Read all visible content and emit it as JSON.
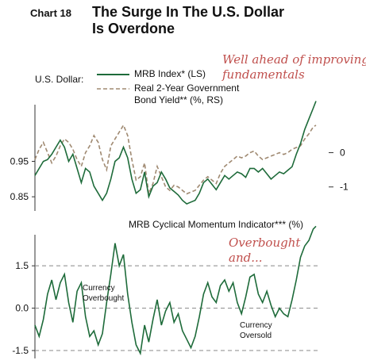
{
  "header": {
    "chart_number": "Chart 18",
    "title_line1": "The Surge In The U.S. Dollar",
    "title_line2": "Is Overdone"
  },
  "top_panel": {
    "annotation_line1": "Well ahead of improving",
    "annotation_line2": "fundamentals",
    "axis_group_label": "U.S. Dollar:",
    "legend_index": "MRB Index* (LS)",
    "legend_yield_line1": "Real 2-Year Government",
    "legend_yield_line2": "Bond Yield** (%, RS)"
  },
  "bottom_panel": {
    "title": "MRB Cyclical Momentum Indicator*** (%)",
    "annotation_line1": "Overbought",
    "annotation_line2": "and...",
    "label_overbought_line1": "Currency",
    "label_overbought_line2": "Overbought",
    "label_oversold_line1": "Currency",
    "label_oversold_line2": "Oversold"
  },
  "colors": {
    "index_line": "#1e6b3a",
    "yield_line": "#a08a72",
    "annotation": "#c0504d",
    "reference_line": "#888888"
  },
  "chart_data": [
    {
      "type": "line",
      "title": "",
      "x_domain": [
        0,
        100
      ],
      "left_axis": {
        "ticks": [
          0.85,
          0.95
        ],
        "tick_labels": [
          "0.85",
          "0.95"
        ],
        "range": [
          0.81,
          1.11
        ]
      },
      "right_axis": {
        "ticks": [
          0,
          -1
        ],
        "tick_labels": [
          "0",
          "-1"
        ],
        "range": [
          -1.7,
          1.4
        ]
      },
      "series": [
        {
          "name": "MRB Index* (LS)",
          "axis": "left",
          "x": [
            0,
            1.5,
            3,
            4.5,
            6,
            7.5,
            9,
            10.5,
            12,
            13.5,
            15,
            16.5,
            18,
            19.5,
            21,
            22.5,
            24,
            25.5,
            27,
            28.5,
            30,
            31.5,
            33,
            34.5,
            36,
            37.5,
            39,
            40.5,
            42,
            43.5,
            45,
            46.5,
            48,
            49.5,
            51,
            52.5,
            54,
            55.5,
            57,
            58.5,
            60,
            61.5,
            63,
            64.5,
            66,
            67.5,
            69,
            70.5,
            72,
            73.5,
            75,
            76.5,
            78,
            79.5,
            81,
            82.5,
            84,
            85.5,
            87,
            88.5,
            90,
            91.5,
            93,
            94.5,
            96,
            97.5,
            99,
            100
          ],
          "values": [
            0.91,
            0.93,
            0.95,
            0.955,
            0.97,
            0.99,
            1.01,
            0.99,
            0.95,
            0.97,
            0.93,
            0.89,
            0.93,
            0.92,
            0.88,
            0.86,
            0.84,
            0.86,
            0.9,
            0.95,
            0.96,
            0.99,
            0.96,
            0.9,
            0.86,
            0.87,
            0.92,
            0.85,
            0.88,
            0.89,
            0.92,
            0.9,
            0.875,
            0.865,
            0.855,
            0.84,
            0.83,
            0.835,
            0.84,
            0.86,
            0.89,
            0.9,
            0.885,
            0.87,
            0.89,
            0.91,
            0.9,
            0.91,
            0.92,
            0.915,
            0.905,
            0.93,
            0.93,
            0.92,
            0.93,
            0.915,
            0.9,
            0.91,
            0.92,
            0.915,
            0.925,
            0.935,
            0.97,
            1.0,
            1.04,
            1.07,
            1.1,
            1.12
          ]
        },
        {
          "name": "Real 2-Year Government Bond Yield** (%, RS)",
          "axis": "right",
          "x": [
            0,
            1.5,
            3,
            4.5,
            6,
            7.5,
            9,
            10.5,
            12,
            13.5,
            15,
            16.5,
            18,
            19.5,
            21,
            22.5,
            24,
            25.5,
            27,
            28.5,
            30,
            31.5,
            33,
            34.5,
            36,
            37.5,
            39,
            40.5,
            42,
            43.5,
            45,
            46.5,
            48,
            49.5,
            51,
            52.5,
            54,
            55.5,
            57,
            58.5,
            60,
            61.5,
            63,
            64.5,
            66,
            67.5,
            69,
            70.5,
            72,
            73.5,
            75,
            76.5,
            78,
            79.5,
            81,
            82.5,
            84,
            85.5,
            87,
            88.5,
            90,
            91.5,
            93,
            94.5,
            96,
            97.5,
            99,
            100
          ],
          "values": [
            -0.2,
            0.1,
            0.3,
            0.0,
            -0.3,
            -0.1,
            0.2,
            0.4,
            0.3,
            0.1,
            -0.2,
            -0.4,
            0.0,
            0.2,
            0.5,
            0.3,
            -0.2,
            -0.5,
            0.2,
            0.4,
            0.6,
            0.8,
            0.5,
            -0.2,
            -0.8,
            -0.7,
            -0.3,
            -1.2,
            -0.9,
            -0.4,
            -0.7,
            -1.0,
            -1.1,
            -0.95,
            -1.0,
            -1.1,
            -1.2,
            -1.15,
            -1.1,
            -0.95,
            -0.8,
            -0.7,
            -0.8,
            -0.9,
            -0.6,
            -0.4,
            -0.3,
            -0.2,
            -0.1,
            -0.15,
            -0.1,
            0.0,
            0.05,
            -0.1,
            -0.2,
            -0.15,
            -0.1,
            -0.05,
            0.0,
            -0.05,
            0.0,
            0.1,
            0.15,
            0.2,
            0.4,
            0.55,
            0.75,
            0.8
          ]
        }
      ]
    },
    {
      "type": "line",
      "title": "MRB Cyclical Momentum Indicator*** (%)",
      "x_domain": [
        0,
        100
      ],
      "left_axis": {
        "ticks": [
          1.5,
          0.0,
          -1.5
        ],
        "tick_labels": [
          "1.5",
          "0.0",
          "-1.5"
        ],
        "range": [
          -1.78,
          2.6
        ]
      },
      "reference_lines": [
        1.5,
        0.0,
        -1.5
      ],
      "series": [
        {
          "name": "MRB Cyclical Momentum Indicator*** (%)",
          "x": [
            0,
            1.5,
            3,
            4.5,
            6,
            7.5,
            9,
            10.5,
            12,
            13.5,
            15,
            16.5,
            18,
            19.5,
            21,
            22.5,
            24,
            25.5,
            27,
            28.5,
            30,
            31.5,
            33,
            34.5,
            36,
            37.5,
            39,
            40.5,
            42,
            43.5,
            45,
            46.5,
            48,
            49.5,
            51,
            52.5,
            54,
            55.5,
            57,
            58.5,
            60,
            61.5,
            63,
            64.5,
            66,
            67.5,
            69,
            70.5,
            72,
            73.5,
            75,
            76.5,
            78,
            79.5,
            81,
            82.5,
            84,
            85.5,
            87,
            88.5,
            90,
            91.5,
            93,
            94.5,
            96,
            97.5,
            99,
            100
          ],
          "values": [
            -0.6,
            -1.0,
            -0.4,
            0.5,
            1.0,
            0.3,
            0.9,
            1.2,
            0.2,
            -0.5,
            0.6,
            0.9,
            -0.3,
            -1.0,
            -0.8,
            -1.3,
            -0.9,
            0.2,
            1.2,
            2.3,
            1.5,
            1.9,
            0.5,
            -0.5,
            -1.3,
            -1.6,
            -0.6,
            -1.2,
            -0.4,
            0.3,
            -0.6,
            -0.1,
            0.2,
            -0.5,
            -0.2,
            -0.8,
            -1.1,
            -1.4,
            -1.0,
            -0.3,
            0.5,
            0.9,
            0.4,
            0.2,
            0.8,
            1.0,
            0.6,
            0.9,
            0.2,
            -0.2,
            0.4,
            1.1,
            1.2,
            0.5,
            0.2,
            0.6,
            0.1,
            -0.3,
            0.0,
            -0.2,
            -0.3,
            0.3,
            1.0,
            1.8,
            2.2,
            2.4,
            2.8,
            2.9
          ]
        }
      ]
    }
  ]
}
